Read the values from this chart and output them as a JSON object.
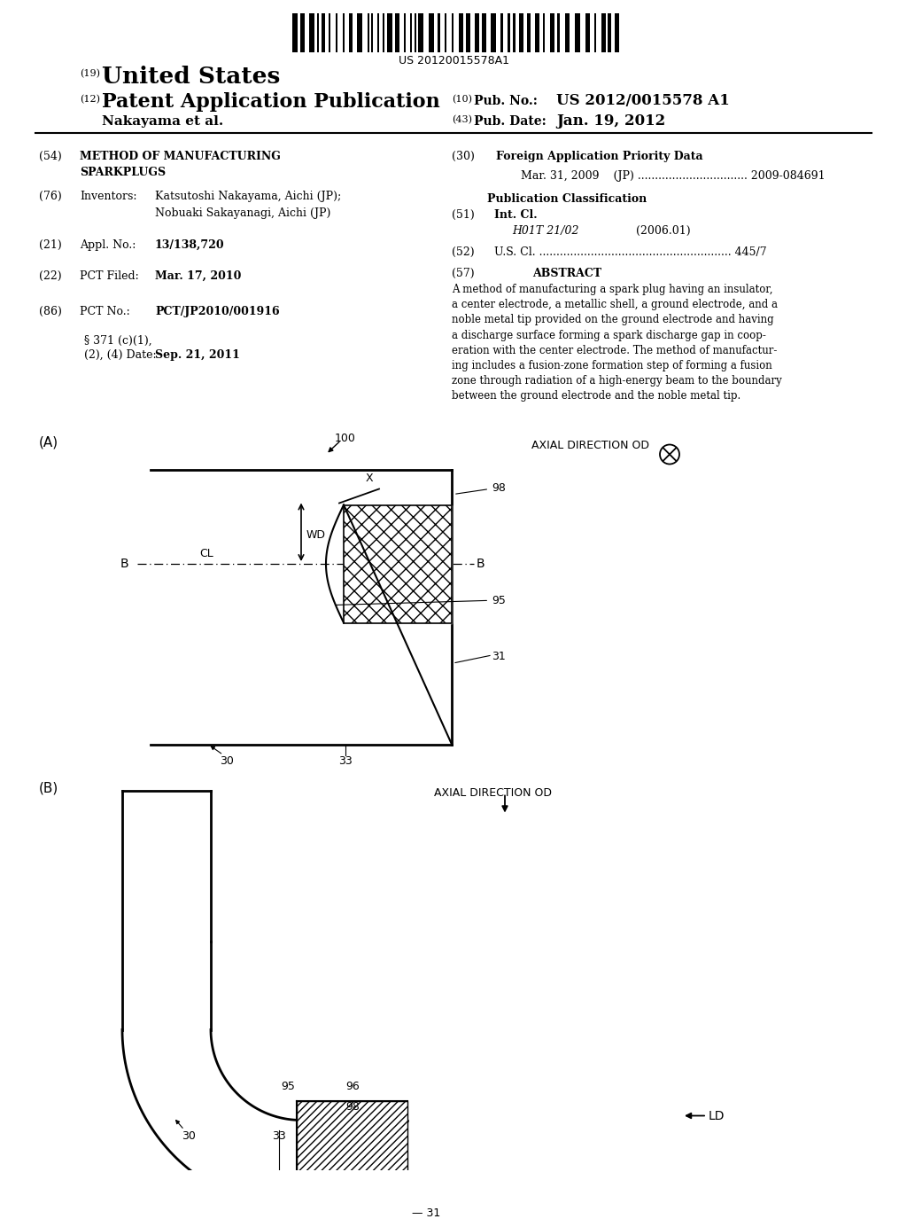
{
  "bg_color": "#ffffff",
  "barcode_text": "US 20120015578A1",
  "title_us": "United States",
  "title_patent": "Patent Application Publication",
  "pub_no": "US 2012/0015578 A1",
  "pub_date": "Jan. 19, 2012",
  "inventor_name": "Nakayama et al.",
  "field_54_title": "METHOD OF MANUFACTURING\nSPARKPLUGS",
  "field_76_value": "Katsutoshi Nakayama, Aichi (JP);\nNobuaki Sakayanagi, Aichi (JP)",
  "field_21_value": "13/138,720",
  "field_22_value": "Mar. 17, 2010",
  "field_86_value": "PCT/JP2010/001916",
  "field_371_date": "Sep. 21, 2011",
  "field_30_value": "Mar. 31, 2009    (JP) ................................ 2009-084691",
  "field_51_value": "H01T 21/02",
  "field_51_year": "(2006.01)",
  "abstract_text": "A method of manufacturing a spark plug having an insulator,\na center electrode, a metallic shell, a ground electrode, and a\nnoble metal tip provided on the ground electrode and having\na discharge surface forming a spark discharge gap in coop-\neration with the center electrode. The method of manufactur-\ning includes a fusion-zone formation step of forming a fusion\nzone through radiation of a high-energy beam to the boundary\nbetween the ground electrode and the noble metal tip.",
  "axial_dir_label": "AXIAL DIRECTION OD",
  "ld_label": "LD",
  "diag_a_label": "(A)",
  "diag_b_label": "(B)"
}
